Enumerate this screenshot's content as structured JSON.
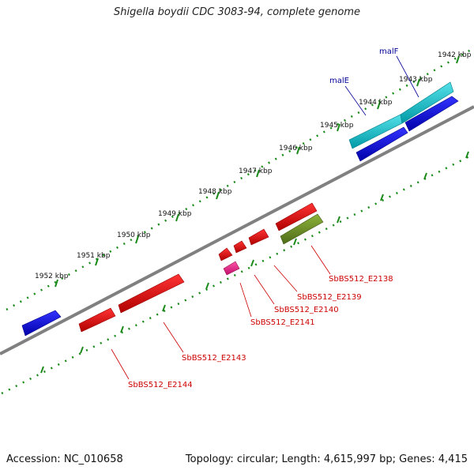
{
  "title": "Shigella boydii CDC 3083-94, complete genome",
  "footer": {
    "accession": "Accession: NC_010658",
    "topology": "Topology: circular; Length: 4,615,997 bp; Genes: 4,415"
  },
  "ruler": {
    "unit": "kbp",
    "labels": [
      "1942 kbp",
      "1943 kbp",
      "1944 kbp",
      "1945 kbp",
      "1946 kbp",
      "1947 kbp",
      "1948 kbp",
      "1949 kbp",
      "1950 kbp",
      "1951 kbp",
      "1952 kbp"
    ]
  },
  "gene_labels": {
    "malF": "malF",
    "malE": "malE",
    "E2138": "SbBS512_E2138",
    "E2139": "SbBS512_E2139",
    "E2140": "SbBS512_E2140",
    "E2141": "SbBS512_E2141",
    "E2143": "SbBS512_E2143",
    "E2144": "SbBS512_E2144"
  },
  "colors": {
    "backbone": "#808080",
    "ruler_ticks": "#1a8a1a",
    "forward_gene": "#0000dd",
    "forward_gene_alt": "#00b8c4",
    "reverse_gene": "#ee0000",
    "reverse_gene_alt": "#ee2288",
    "reverse_gene_other": "#6b8e23",
    "label_forward": "#000099",
    "label_reverse": "#cc0000"
  }
}
